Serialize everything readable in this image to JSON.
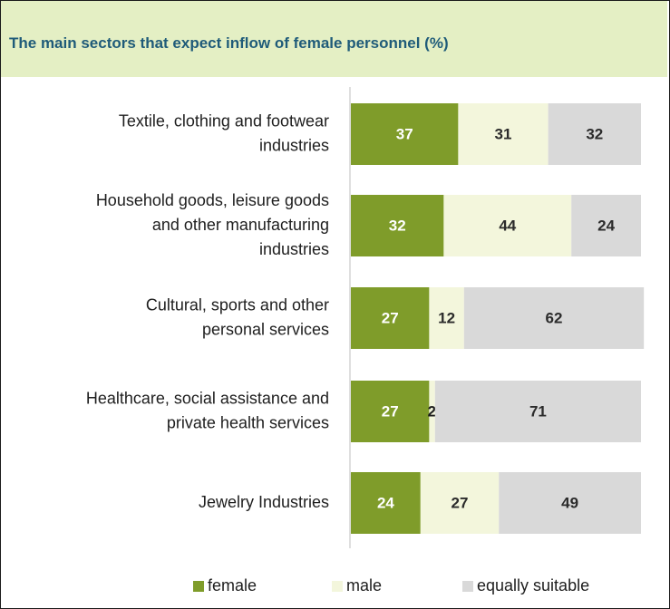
{
  "chart_data": {
    "type": "bar",
    "orientation": "horizontal",
    "stacked": true,
    "title": "The main sectors that expect inflow of female personnel (%)",
    "categories": [
      [
        "Textile, clothing and footwear",
        "industries"
      ],
      [
        "Household goods, leisure goods",
        "and other manufacturing",
        "industries"
      ],
      [
        "Cultural, sports and other",
        "personal services"
      ],
      [
        "Healthcare, social assistance and",
        "private health services"
      ],
      [
        "Jewelry Industries"
      ]
    ],
    "series": [
      {
        "name": "female",
        "values": [
          37,
          32,
          27,
          27,
          24
        ],
        "color": "#7f9c2a",
        "label_color": "#ffffff"
      },
      {
        "name": "male",
        "values": [
          31,
          44,
          12,
          2,
          27
        ],
        "color": "#f3f6dc",
        "label_color": "#2b2b2b"
      },
      {
        "name": "equally suitable",
        "values": [
          32,
          24,
          62,
          71,
          49
        ],
        "color": "#d9d9d9",
        "label_color": "#2b2b2b"
      }
    ],
    "xlim": [
      0,
      100
    ],
    "grid": false,
    "legend_position": "bottom"
  }
}
